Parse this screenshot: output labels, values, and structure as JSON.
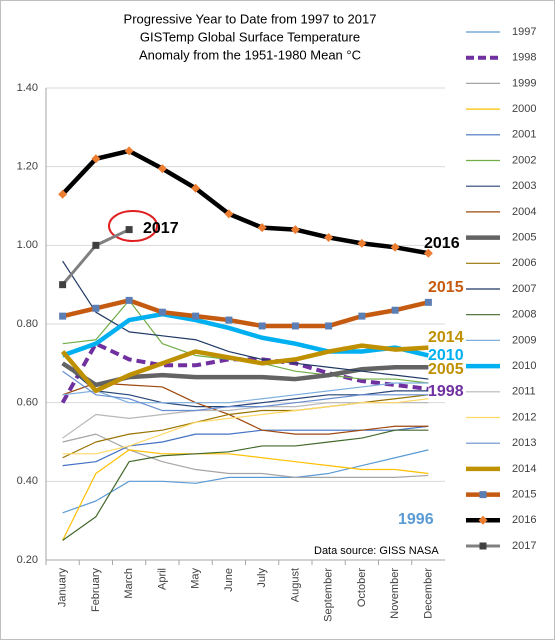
{
  "chart_data": {
    "type": "line",
    "title": [
      "Progressive Year to Date from 1997 to 2017",
      "GISTemp Global Surface Temperature",
      "Anomaly from the 1951-1980 Mean °C"
    ],
    "categories": [
      "January",
      "February",
      "March",
      "April",
      "May",
      "June",
      "July",
      "August",
      "September",
      "October",
      "November",
      "December"
    ],
    "ylim": [
      0.2,
      1.4
    ],
    "yticks": [
      {
        "value": 0.2,
        "label": "0.20"
      },
      {
        "value": 0.4,
        "label": "0.40"
      },
      {
        "value": 0.6,
        "label": "0.60"
      },
      {
        "value": 0.8,
        "label": "0.80"
      },
      {
        "value": 1.0,
        "label": "1.00"
      },
      {
        "value": 1.2,
        "label": "1.20"
      },
      {
        "value": 1.4,
        "label": "1.40"
      }
    ],
    "grid": true,
    "legend": "right",
    "series": [
      {
        "name": "1997",
        "color": "#5b9bd5",
        "values": [
          0.32,
          0.35,
          0.4,
          0.4,
          0.395,
          0.41,
          0.41,
          0.41,
          0.42,
          0.44,
          0.46,
          0.48
        ]
      },
      {
        "name": "1998",
        "color": "#7030a0",
        "style": "dashed",
        "values": [
          0.6,
          0.75,
          0.71,
          0.695,
          0.695,
          0.71,
          0.71,
          0.7,
          0.675,
          0.655,
          0.645,
          0.635
        ]
      },
      {
        "name": "1999",
        "color": "#a5a5a5",
        "values": [
          0.5,
          0.52,
          0.48,
          0.45,
          0.43,
          0.42,
          0.42,
          0.41,
          0.41,
          0.41,
          0.41,
          0.415
        ]
      },
      {
        "name": "2000",
        "color": "#ffc000",
        "values": [
          0.25,
          0.42,
          0.48,
          0.47,
          0.47,
          0.47,
          0.46,
          0.45,
          0.44,
          0.43,
          0.43,
          0.42
        ]
      },
      {
        "name": "2001",
        "color": "#4472c4",
        "values": [
          0.44,
          0.45,
          0.49,
          0.5,
          0.52,
          0.52,
          0.53,
          0.53,
          0.53,
          0.53,
          0.53,
          0.54
        ]
      },
      {
        "name": "2002",
        "color": "#70ad47",
        "values": [
          0.75,
          0.76,
          0.86,
          0.75,
          0.72,
          0.71,
          0.7,
          0.68,
          0.67,
          0.66,
          0.66,
          0.65
        ]
      },
      {
        "name": "2003",
        "color": "#264478",
        "values": [
          0.7,
          0.63,
          0.62,
          0.6,
          0.59,
          0.59,
          0.6,
          0.61,
          0.62,
          0.62,
          0.63,
          0.63
        ]
      },
      {
        "name": "2004",
        "color": "#9e480e",
        "values": [
          0.62,
          0.65,
          0.645,
          0.64,
          0.6,
          0.57,
          0.53,
          0.52,
          0.52,
          0.53,
          0.54,
          0.54
        ]
      },
      {
        "name": "2005",
        "color": "#636363",
        "style": "thick",
        "values": [
          0.7,
          0.645,
          0.665,
          0.67,
          0.665,
          0.665,
          0.665,
          0.66,
          0.67,
          0.685,
          0.69,
          0.69
        ]
      },
      {
        "name": "2006",
        "color": "#997300",
        "values": [
          0.46,
          0.5,
          0.52,
          0.53,
          0.55,
          0.57,
          0.58,
          0.58,
          0.59,
          0.6,
          0.61,
          0.62
        ]
      },
      {
        "name": "2007",
        "color": "#1f3864",
        "values": [
          0.96,
          0.83,
          0.78,
          0.77,
          0.76,
          0.73,
          0.71,
          0.7,
          0.69,
          0.68,
          0.67,
          0.66
        ]
      },
      {
        "name": "2008",
        "color": "#43682b",
        "values": [
          0.25,
          0.31,
          0.45,
          0.465,
          0.47,
          0.475,
          0.49,
          0.49,
          0.5,
          0.51,
          0.53,
          0.53
        ]
      },
      {
        "name": "2009",
        "color": "#7cafdd",
        "values": [
          0.62,
          0.63,
          0.6,
          0.6,
          0.6,
          0.6,
          0.61,
          0.62,
          0.63,
          0.64,
          0.65,
          0.65
        ]
      },
      {
        "name": "2010",
        "color": "#00b0f0",
        "style": "thick",
        "values": [
          0.72,
          0.75,
          0.81,
          0.825,
          0.81,
          0.79,
          0.765,
          0.75,
          0.73,
          0.73,
          0.74,
          0.72
        ]
      },
      {
        "name": "2011",
        "color": "#b7b7b7",
        "values": [
          0.51,
          0.57,
          0.56,
          0.57,
          0.58,
          0.58,
          0.59,
          0.59,
          0.6,
          0.6,
          0.6,
          0.6
        ]
      },
      {
        "name": "2012",
        "color": "#ffd966",
        "values": [
          0.47,
          0.47,
          0.49,
          0.52,
          0.55,
          0.56,
          0.57,
          0.58,
          0.59,
          0.6,
          0.6,
          0.61
        ]
      },
      {
        "name": "2013",
        "color": "#698ed0",
        "values": [
          0.68,
          0.62,
          0.61,
          0.58,
          0.58,
          0.59,
          0.59,
          0.6,
          0.61,
          0.62,
          0.62,
          0.62
        ]
      },
      {
        "name": "2014",
        "color": "#bf9000",
        "style": "thick",
        "values": [
          0.73,
          0.63,
          0.67,
          0.7,
          0.73,
          0.715,
          0.7,
          0.71,
          0.73,
          0.745,
          0.735,
          0.74
        ]
      },
      {
        "name": "2015",
        "color": "#c55a11",
        "style": "thick",
        "marker": "square",
        "marker_color": "#5b7fb5",
        "values": [
          0.82,
          0.84,
          0.86,
          0.83,
          0.82,
          0.81,
          0.795,
          0.795,
          0.795,
          0.82,
          0.835,
          0.855
        ]
      },
      {
        "name": "2016",
        "color": "#000000",
        "style": "thick",
        "marker": "diamond",
        "marker_color": "#ed7d31",
        "values": [
          1.13,
          1.22,
          1.24,
          1.195,
          1.145,
          1.08,
          1.045,
          1.04,
          1.02,
          1.005,
          0.995,
          0.98
        ]
      },
      {
        "name": "2017",
        "color": "#808080",
        "style": "medium",
        "marker": "square",
        "marker_color": "#404040",
        "values": [
          0.9,
          1.0,
          1.04,
          null,
          null,
          null,
          null,
          null,
          null,
          null,
          null,
          null
        ]
      }
    ],
    "annotations": [
      {
        "text": "2017",
        "color": "#000000"
      },
      {
        "text": "2016",
        "color": "#000000"
      },
      {
        "text": "2015",
        "color": "#c55a11"
      },
      {
        "text": "2014",
        "color": "#bf9000"
      },
      {
        "text": "2010",
        "color": "#00b0f0"
      },
      {
        "text": "2005",
        "color": "#bf9000"
      },
      {
        "text": "1998",
        "color": "#7030a0"
      },
      {
        "text": "1996",
        "color": "#5b9bd5"
      },
      {
        "text": "Data source: GISS NASA",
        "color": "#000000"
      }
    ]
  }
}
